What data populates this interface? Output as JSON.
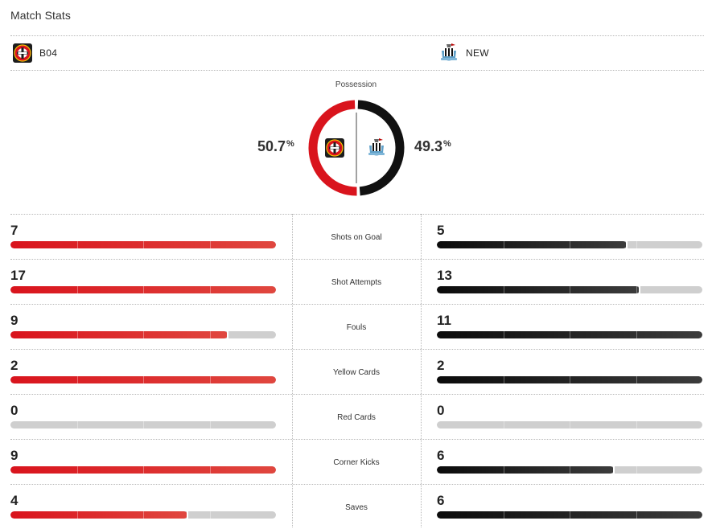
{
  "header": {
    "title": "Match Stats"
  },
  "teams": {
    "home": {
      "abbr": "B04",
      "color": "#d9141d",
      "logo": "bayer-leverkusen-crest-icon"
    },
    "away": {
      "abbr": "NEW",
      "color": "#111111",
      "logo": "newcastle-crest-icon"
    }
  },
  "possession": {
    "label": "Possession",
    "home": "50.7",
    "away": "49.3",
    "unit": "%"
  },
  "stats": [
    {
      "label": "Shots on Goal",
      "home": 7,
      "away": 5
    },
    {
      "label": "Shot Attempts",
      "home": 17,
      "away": 13
    },
    {
      "label": "Fouls",
      "home": 9,
      "away": 11
    },
    {
      "label": "Yellow Cards",
      "home": 2,
      "away": 2
    },
    {
      "label": "Red Cards",
      "home": 0,
      "away": 0
    },
    {
      "label": "Corner Kicks",
      "home": 9,
      "away": 6
    },
    {
      "label": "Saves",
      "home": 4,
      "away": 6
    }
  ]
}
